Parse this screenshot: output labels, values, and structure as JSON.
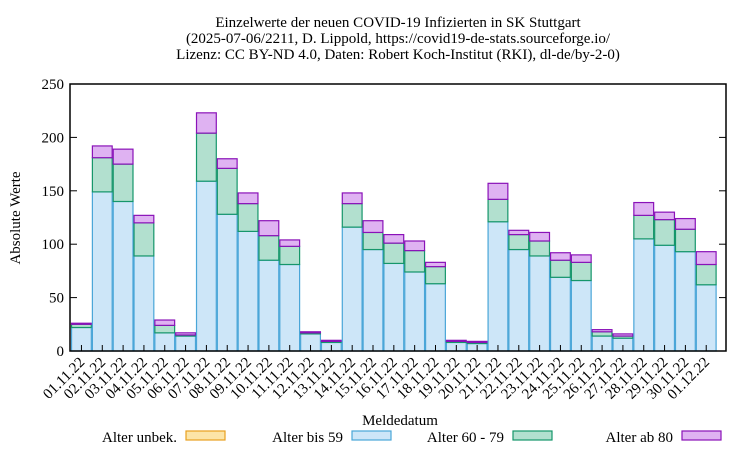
{
  "chart_data": {
    "type": "bar",
    "stacked": true,
    "title_lines": [
      "Einzelwerte der neuen COVID-19 Infizierten in SK Stuttgart",
      "(2025-07-06/2211, D. Lippold, https://covid19-de-stats.sourceforge.io/",
      "Lizenz: CC BY-ND 4.0, Daten: Robert Koch-Institut (RKI), dl-de/by-2-0)"
    ],
    "xlabel": "Meldedatum",
    "ylabel": "Absolute Werte",
    "ylim": [
      0,
      250
    ],
    "yticks": [
      0,
      50,
      100,
      150,
      200,
      250
    ],
    "grid": false,
    "legend_position": "bottom",
    "categories": [
      "01.11.22",
      "02.11.22",
      "03.11.22",
      "04.11.22",
      "05.11.22",
      "06.11.22",
      "07.11.22",
      "08.11.22",
      "09.11.22",
      "10.11.22",
      "11.11.22",
      "12.11.22",
      "13.11.22",
      "14.11.22",
      "15.11.22",
      "16.11.22",
      "17.11.22",
      "18.11.22",
      "19.11.22",
      "20.11.22",
      "21.11.22",
      "22.11.22",
      "23.11.22",
      "24.11.22",
      "25.11.22",
      "26.11.22",
      "27.11.22",
      "28.11.22",
      "29.11.22",
      "30.11.22",
      "01.12.22"
    ],
    "series": [
      {
        "name": "Alter unbek.",
        "fill": "#fce5a8",
        "stroke": "#e8a020",
        "values": [
          0,
          0,
          0,
          0,
          0,
          0,
          0,
          0,
          0,
          0,
          0,
          0,
          0,
          0,
          0,
          0,
          0,
          0,
          0,
          0,
          0,
          0,
          0,
          0,
          0,
          0,
          0,
          0,
          0,
          0,
          0
        ]
      },
      {
        "name": "Alter bis 59",
        "fill": "#cde6f8",
        "stroke": "#4aa6d8",
        "values": [
          22,
          149,
          140,
          89,
          17,
          14,
          159,
          128,
          112,
          85,
          81,
          16,
          8,
          116,
          95,
          82,
          74,
          63,
          8,
          7,
          121,
          95,
          89,
          69,
          66,
          14,
          12,
          105,
          99,
          93,
          62
        ]
      },
      {
        "name": "Alter 60 - 79",
        "fill": "#b2e0cf",
        "stroke": "#15966a",
        "values": [
          3,
          32,
          35,
          31,
          7,
          1,
          45,
          43,
          26,
          23,
          17,
          1,
          1,
          22,
          16,
          19,
          20,
          16,
          1,
          1,
          21,
          14,
          14,
          16,
          17,
          4,
          2,
          22,
          24,
          21,
          19
        ]
      },
      {
        "name": "Alter ab 80",
        "fill": "#dfb2f2",
        "stroke": "#8a12b8",
        "values": [
          1,
          11,
          14,
          7,
          5,
          2,
          19,
          9,
          10,
          14,
          6,
          1,
          1,
          10,
          11,
          8,
          9,
          4,
          1,
          1,
          15,
          4,
          8,
          7,
          7,
          2,
          2,
          12,
          7,
          10,
          12
        ]
      }
    ]
  }
}
